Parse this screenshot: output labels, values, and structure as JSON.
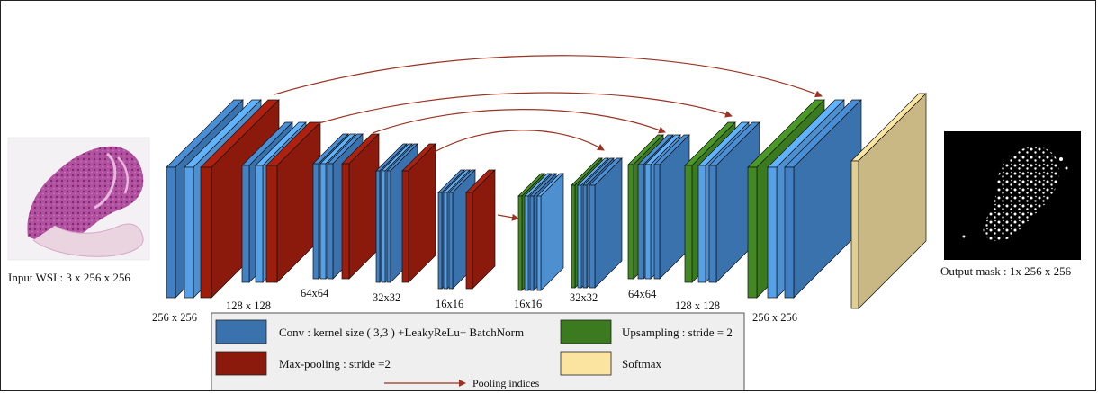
{
  "colors": {
    "conv": "#3a72ad",
    "conv_light": "#4d8fcf",
    "pool": "#8c1a0c",
    "upsample": "#3b7a1f",
    "softmax": "#c9b883",
    "softmax_legend": "#fbe4a0",
    "arrow": "#9b3322",
    "legend_bg": "#efefef"
  },
  "input": {
    "caption": "Input WSI : 3 x 256 x 256",
    "icon": "histology-slide-image"
  },
  "output": {
    "caption": "Output mask : 1x 256 x 256",
    "icon": "segmentation-mask-image"
  },
  "encoder": {
    "labels": [
      "256 x 256",
      "128 x 128",
      "64x64",
      "32x32",
      "16x16"
    ]
  },
  "decoder": {
    "labels": [
      "16x16",
      "32x32",
      "64x64",
      "128 x 128",
      "256 x 256"
    ]
  },
  "legend": {
    "conv": "Conv : kernel size ( 3,3 ) +LeakyReLu+ BatchNorm",
    "pool": "Max-pooling : stride =2",
    "upsample": "Upsampling : stride = 2",
    "softmax": "Softmax",
    "pooling_indices": "Pooling indices"
  }
}
